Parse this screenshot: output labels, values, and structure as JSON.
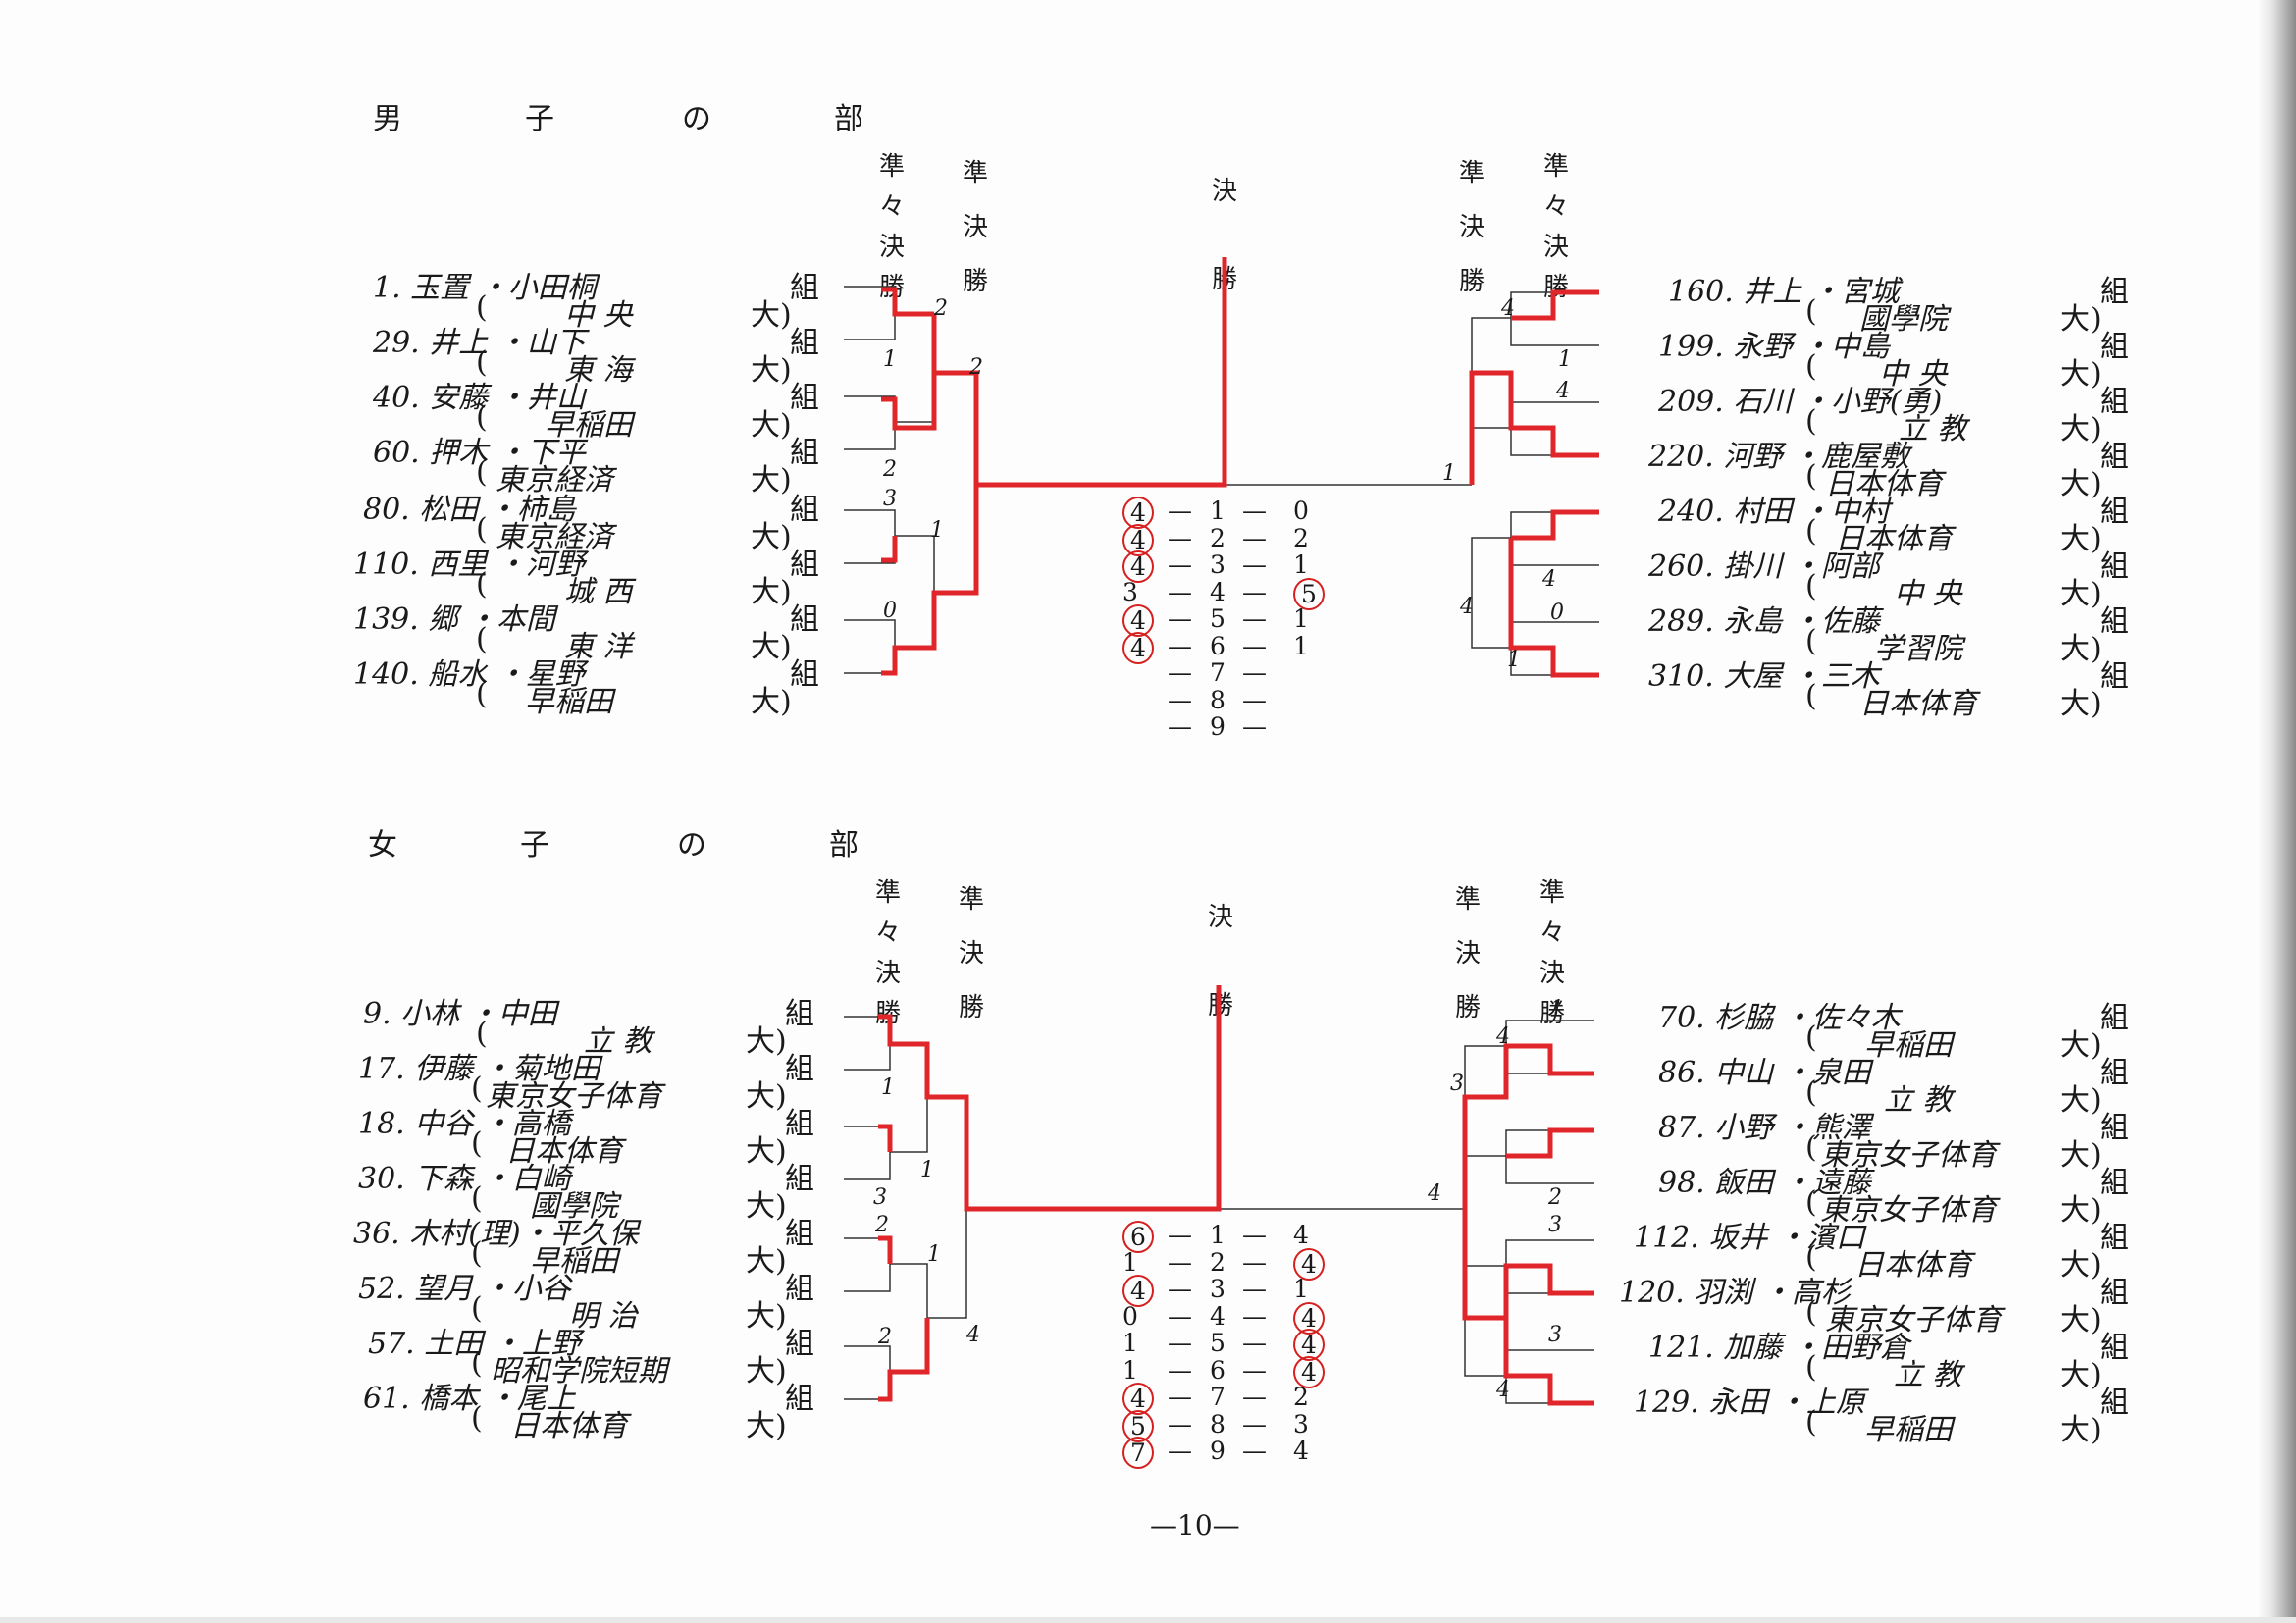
{
  "page_number": "—10—",
  "round_labels": {
    "quarterfinal": [
      "準",
      "々",
      "決",
      "勝"
    ],
    "semifinal": [
      "準",
      "決",
      "勝"
    ],
    "final": [
      "決",
      "勝"
    ]
  },
  "entry_suffix": "組",
  "school_suffix": "大)",
  "open_paren": "(",
  "sections": [
    {
      "title": [
        "男",
        "子",
        "の",
        "部"
      ],
      "left_entries": [
        {
          "name": "1. 玉置 ・小田桐",
          "school": "中 央"
        },
        {
          "name": "29. 井上 ・山下",
          "school": "東 海"
        },
        {
          "name": "40. 安藤 ・井山",
          "school": "早稲田"
        },
        {
          "name": "60. 押木 ・下平",
          "school": "東京経済"
        },
        {
          "name": "80. 松田 ・柿島",
          "school": "東京経済"
        },
        {
          "name": "110. 西里 ・河野",
          "school": "城 西"
        },
        {
          "name": "139. 郷 ・本間",
          "school": "東 洋"
        },
        {
          "name": "140. 船水 ・星野",
          "school": "早稲田"
        }
      ],
      "right_entries": [
        {
          "name": "160. 井上 ・宮城",
          "school": "國學院"
        },
        {
          "name": "199. 永野 ・中島",
          "school": "中 央"
        },
        {
          "name": "209. 石川 ・小野(勇)",
          "school": "立 教"
        },
        {
          "name": "220. 河野 ・鹿屋敷",
          "school": "日本体育"
        },
        {
          "name": "240. 村田 ・中村",
          "school": "日本体育"
        },
        {
          "name": "260. 掛川 ・阿部",
          "school": "中 央"
        },
        {
          "name": "289. 永島 ・佐藤",
          "school": "学習院"
        },
        {
          "name": "310. 大屋 ・三木",
          "school": "日本体育"
        }
      ],
      "bracket_scores": {
        "left_qf": [
          "2",
          "1",
          "2",
          "3",
          "1",
          "0"
        ],
        "left_sf": [
          "2"
        ],
        "right_qf": [
          "4",
          "1",
          "4",
          "4",
          "0",
          "1"
        ],
        "right_sf": [
          "1",
          "4"
        ]
      },
      "final_games": [
        {
          "game": "1",
          "left": "4",
          "right": "0",
          "winner": "left"
        },
        {
          "game": "2",
          "left": "4",
          "right": "2",
          "winner": "left"
        },
        {
          "game": "3",
          "left": "4",
          "right": "1",
          "winner": "left"
        },
        {
          "game": "4",
          "left": "3",
          "right": "5",
          "winner": "right"
        },
        {
          "game": "5",
          "left": "4",
          "right": "1",
          "winner": "left"
        },
        {
          "game": "6",
          "left": "4",
          "right": "1",
          "winner": "left"
        },
        {
          "game": "7",
          "left": "",
          "right": "",
          "winner": ""
        },
        {
          "game": "8",
          "left": "",
          "right": "",
          "winner": ""
        },
        {
          "game": "9",
          "left": "",
          "right": "",
          "winner": ""
        }
      ]
    },
    {
      "title": [
        "女",
        "子",
        "の",
        "部"
      ],
      "left_entries": [
        {
          "name": "9. 小林 ・中田",
          "school": "立 教"
        },
        {
          "name": "17. 伊藤 ・菊地田",
          "school": "東京女子体育"
        },
        {
          "name": "18. 中谷 ・高橋",
          "school": "日本体育"
        },
        {
          "name": "30. 下森 ・白崎",
          "school": "國學院"
        },
        {
          "name": "36. 木村(理)・平久保",
          "school": "早稲田"
        },
        {
          "name": "52. 望月 ・小谷",
          "school": "明 治"
        },
        {
          "name": "57. 土田 ・上野",
          "school": "昭和学院短期"
        },
        {
          "name": "61. 橋本 ・尾上",
          "school": "日本体育"
        }
      ],
      "right_entries": [
        {
          "name": "70. 杉脇 ・佐々木",
          "school": "早稲田"
        },
        {
          "name": "86. 中山 ・泉田",
          "school": "立 教"
        },
        {
          "name": "87. 小野 ・熊澤",
          "school": "東京女子体育"
        },
        {
          "name": "98. 飯田 ・遠藤",
          "school": "東京女子体育"
        },
        {
          "name": "112. 坂井 ・濱口",
          "school": "日本体育"
        },
        {
          "name": "120. 羽渕 ・高杉",
          "school": "東京女子体育"
        },
        {
          "name": "121. 加藤 ・田野倉",
          "school": "立 教"
        },
        {
          "name": "129. 永田 ・上原",
          "school": "早稲田"
        }
      ],
      "bracket_scores": {
        "left_qf": [
          "1",
          "1",
          "3",
          "2",
          "1",
          "2"
        ],
        "left_sf": [
          "4"
        ],
        "right_qf": [
          "1",
          "4",
          "2",
          "3",
          "3",
          "4"
        ],
        "right_sf": [
          "3",
          "4"
        ]
      },
      "final_games": [
        {
          "game": "1",
          "left": "6",
          "right": "4",
          "winner": "left"
        },
        {
          "game": "2",
          "left": "1",
          "right": "4",
          "winner": "right"
        },
        {
          "game": "3",
          "left": "4",
          "right": "1",
          "winner": "left"
        },
        {
          "game": "4",
          "left": "0",
          "right": "4",
          "winner": "right"
        },
        {
          "game": "5",
          "left": "1",
          "right": "4",
          "winner": "right"
        },
        {
          "game": "6",
          "left": "1",
          "right": "4",
          "winner": "right"
        },
        {
          "game": "7",
          "left": "4",
          "right": "2",
          "winner": "left"
        },
        {
          "game": "8",
          "left": "5",
          "right": "3",
          "winner": "left"
        },
        {
          "game": "9",
          "left": "7",
          "right": "4",
          "winner": "left"
        }
      ]
    }
  ]
}
